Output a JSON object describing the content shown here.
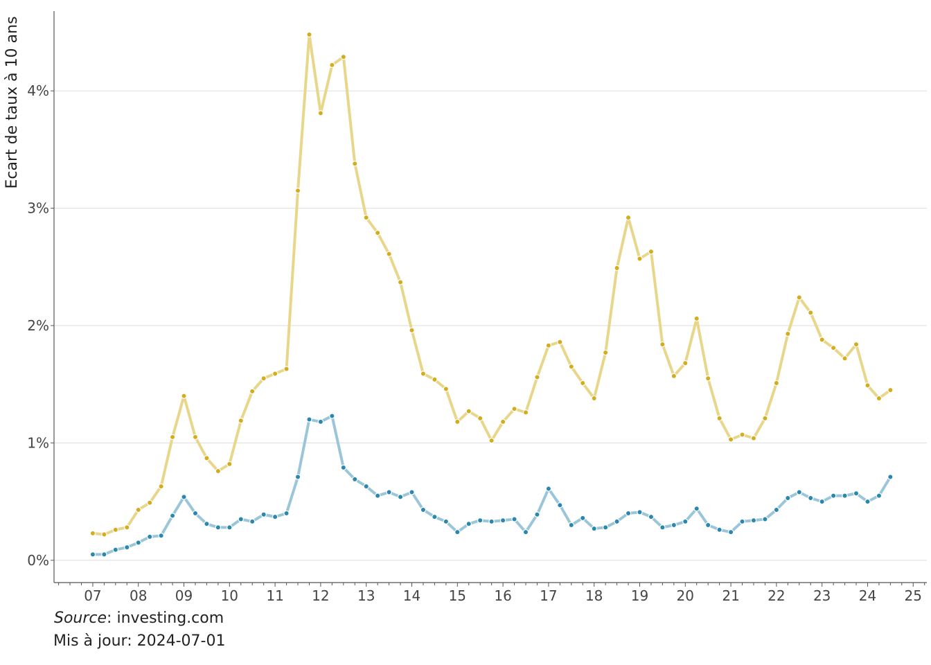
{
  "chart_data": {
    "type": "line",
    "title": "",
    "xlabel": "",
    "ylabel": "Ecart de taux à 10 ans",
    "xlim": [
      2006.15,
      2025.3
    ],
    "ylim": [
      -0.0019,
      0.0468
    ],
    "x_ticks": [
      2007,
      2008,
      2009,
      2010,
      2011,
      2012,
      2013,
      2014,
      2015,
      2016,
      2017,
      2018,
      2019,
      2020,
      2021,
      2022,
      2023,
      2024,
      2025
    ],
    "x_tick_labels": [
      "07",
      "08",
      "09",
      "10",
      "11",
      "12",
      "13",
      "14",
      "15",
      "16",
      "17",
      "18",
      "19",
      "20",
      "21",
      "22",
      "23",
      "24",
      "25"
    ],
    "y_ticks": [
      0,
      0.01,
      0.02,
      0.03,
      0.04
    ],
    "y_tick_labels": [
      "0%",
      "1%",
      "2%",
      "3%",
      "4%"
    ],
    "grid": "horizontal",
    "legend": "none",
    "x": [
      2007.0,
      2007.25,
      2007.5,
      2007.75,
      2008.0,
      2008.25,
      2008.5,
      2008.75,
      2009.0,
      2009.25,
      2009.5,
      2009.75,
      2010.0,
      2010.25,
      2010.5,
      2010.75,
      2011.0,
      2011.25,
      2011.5,
      2011.75,
      2012.0,
      2012.25,
      2012.5,
      2012.75,
      2013.0,
      2013.25,
      2013.5,
      2013.75,
      2014.0,
      2014.25,
      2014.5,
      2014.75,
      2015.0,
      2015.25,
      2015.5,
      2015.75,
      2016.0,
      2016.25,
      2016.5,
      2016.75,
      2017.0,
      2017.25,
      2017.5,
      2017.75,
      2018.0,
      2018.25,
      2018.5,
      2018.75,
      2019.0,
      2019.25,
      2019.5,
      2019.75,
      2020.0,
      2020.25,
      2020.5,
      2020.75,
      2021.0,
      2021.25,
      2021.5,
      2021.75,
      2022.0,
      2022.25,
      2022.5,
      2022.75,
      2023.0,
      2023.25,
      2023.5,
      2023.75,
      2024.0,
      2024.25,
      2024.5
    ],
    "series": [
      {
        "color": "#d4ad1f",
        "line_color": "#e8d68a",
        "values": [
          0.0023,
          0.0022,
          0.0026,
          0.0028,
          0.0043,
          0.0049,
          0.0063,
          0.0105,
          0.014,
          0.0105,
          0.0087,
          0.0076,
          0.0082,
          0.0119,
          0.0144,
          0.0155,
          0.0159,
          0.0163,
          0.0315,
          0.0448,
          0.0381,
          0.0422,
          0.0429,
          0.0338,
          0.0292,
          0.0279,
          0.0261,
          0.0237,
          0.0196,
          0.0159,
          0.0154,
          0.0146,
          0.0118,
          0.0127,
          0.0121,
          0.0102,
          0.0118,
          0.0129,
          0.0126,
          0.0156,
          0.0183,
          0.0186,
          0.0165,
          0.0151,
          0.0138,
          0.0177,
          0.0249,
          0.0292,
          0.0257,
          0.0263,
          0.0184,
          0.0157,
          0.0168,
          0.0206,
          0.0155,
          0.0121,
          0.0103,
          0.0107,
          0.0104,
          0.0121,
          0.0151,
          0.0193,
          0.0224,
          0.0211,
          0.0188,
          0.0181,
          0.0172,
          0.0184,
          0.0149,
          0.0138,
          0.0145
        ]
      },
      {
        "color": "#2a87ad",
        "line_color": "#9bc5d8",
        "values": [
          0.0005,
          0.0005,
          0.0009,
          0.0011,
          0.0015,
          0.002,
          0.0021,
          0.0038,
          0.0054,
          0.004,
          0.0031,
          0.0028,
          0.0028,
          0.0035,
          0.0033,
          0.0039,
          0.0037,
          0.004,
          0.0071,
          0.012,
          0.0118,
          0.0123,
          0.0079,
          0.0069,
          0.0063,
          0.0055,
          0.0058,
          0.0054,
          0.0058,
          0.0043,
          0.0037,
          0.0033,
          0.0024,
          0.0031,
          0.0034,
          0.0033,
          0.0034,
          0.0035,
          0.0024,
          0.0039,
          0.0061,
          0.0047,
          0.003,
          0.0036,
          0.0027,
          0.0028,
          0.0033,
          0.004,
          0.0041,
          0.0037,
          0.0028,
          0.003,
          0.0033,
          0.0044,
          0.003,
          0.0026,
          0.0024,
          0.0033,
          0.0034,
          0.0035,
          0.0043,
          0.0053,
          0.0058,
          0.0053,
          0.005,
          0.0055,
          0.0055,
          0.0057,
          0.005,
          0.0055,
          0.0071
        ]
      }
    ]
  },
  "footer": {
    "source_label": "Source",
    "source_value": ": investing.com",
    "updated": "Mis à jour: 2024-07-01"
  }
}
